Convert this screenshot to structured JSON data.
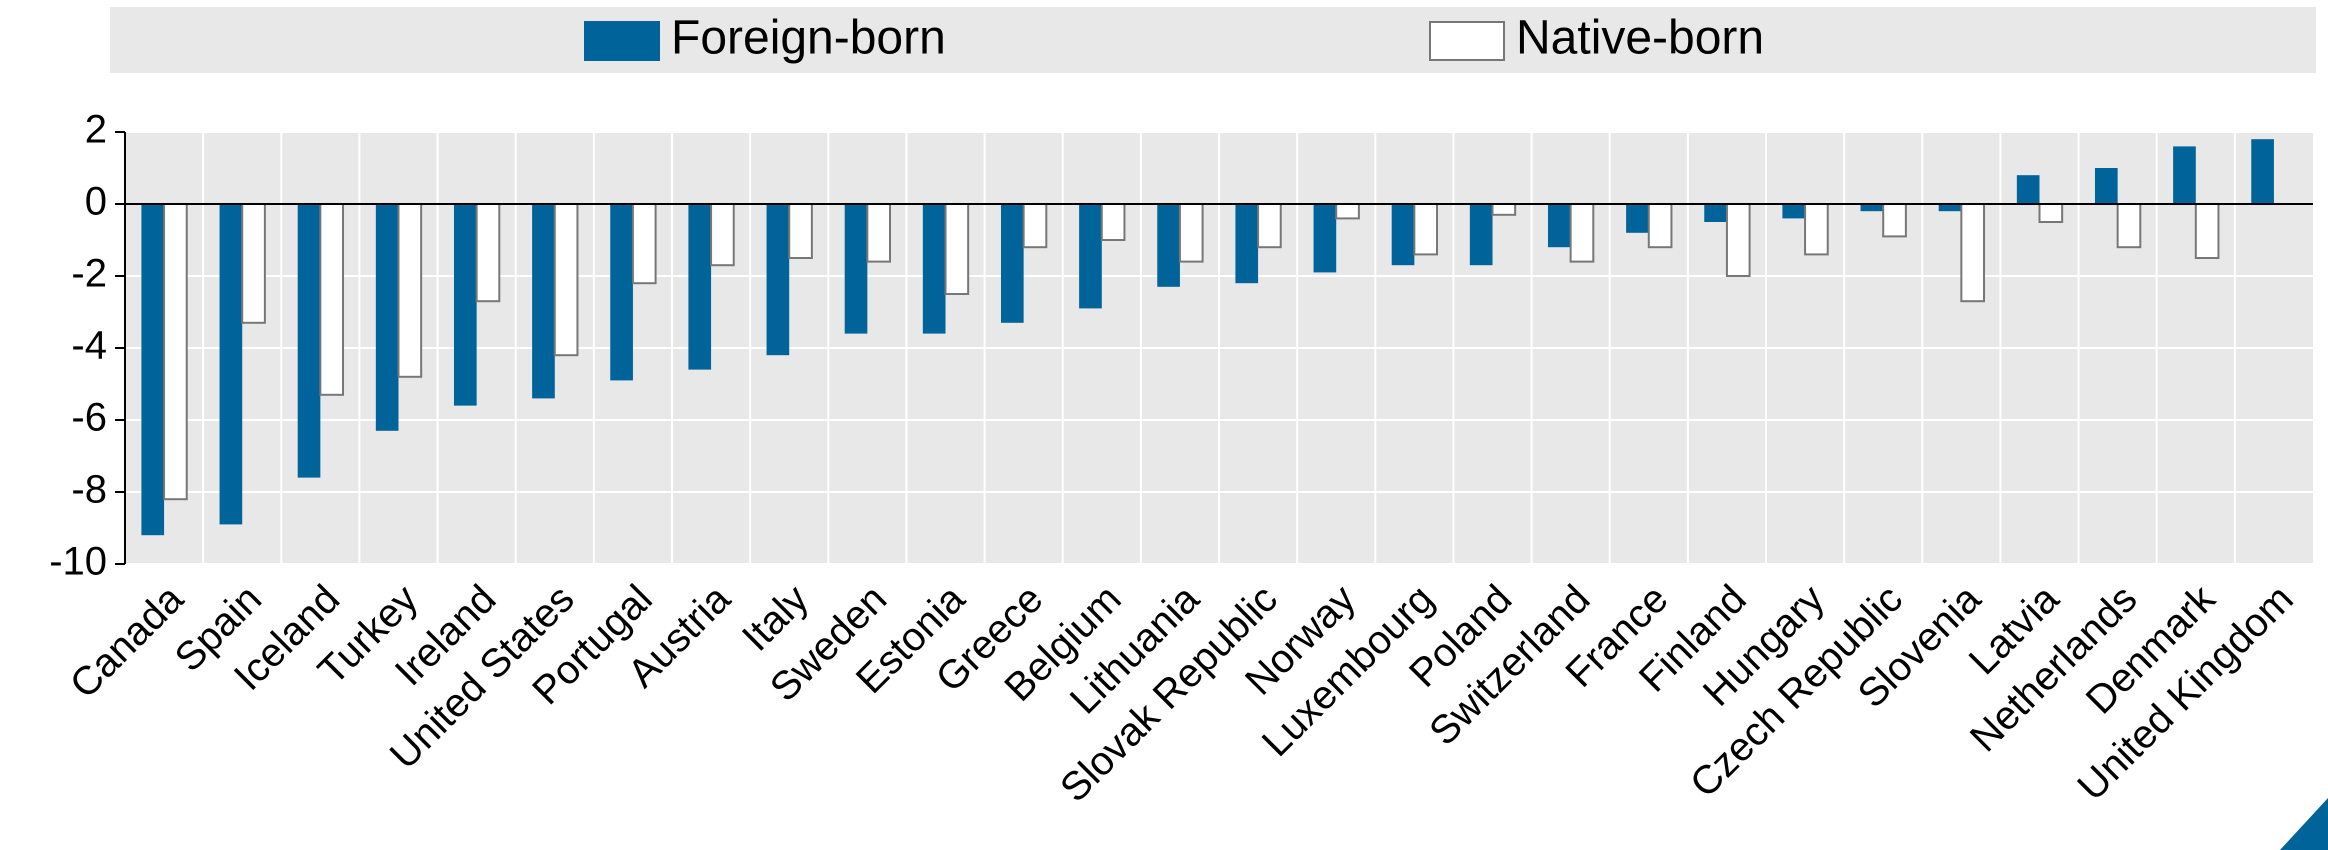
{
  "chart_data": {
    "type": "bar",
    "categories": [
      "Canada",
      "Spain",
      "Iceland",
      "Turkey",
      "Ireland",
      "United States",
      "Portugal",
      "Austria",
      "Italy",
      "Sweden",
      "Estonia",
      "Greece",
      "Belgium",
      "Lithuania",
      "Slovak Republic",
      "Norway",
      "Luxembourg",
      "Poland",
      "Switzerland",
      "France",
      "Finland",
      "Hungary",
      "Czech Republic",
      "Slovenia",
      "Latvia",
      "Netherlands",
      "Denmark",
      "United Kingdom"
    ],
    "series": [
      {
        "name": "Foreign-born",
        "color": "#006399",
        "values": [
          -9.2,
          -8.9,
          -7.6,
          -6.3,
          -5.6,
          -5.4,
          -4.9,
          -4.6,
          -4.2,
          -3.6,
          -3.6,
          -3.3,
          -2.9,
          -2.3,
          -2.2,
          -1.9,
          -1.7,
          -1.7,
          -1.2,
          -0.8,
          -0.5,
          -0.4,
          -0.2,
          -0.2,
          0.8,
          1.0,
          1.6,
          1.8
        ]
      },
      {
        "name": "Native-born",
        "color": "#ffffff",
        "values": [
          -8.2,
          -3.3,
          -5.3,
          -4.8,
          -2.7,
          -4.2,
          -2.2,
          -1.7,
          -1.5,
          -1.6,
          -2.5,
          -1.2,
          -1.0,
          -1.6,
          -1.2,
          -0.4,
          -1.4,
          -0.3,
          -1.6,
          -1.2,
          -2.0,
          -1.4,
          -0.9,
          -2.7,
          -0.5,
          -1.2,
          -1.5,
          null
        ]
      }
    ],
    "ylim": [
      -10,
      2
    ],
    "yticks": [
      -10,
      -8,
      -6,
      -4,
      -2,
      0,
      2
    ],
    "grid": true
  }
}
